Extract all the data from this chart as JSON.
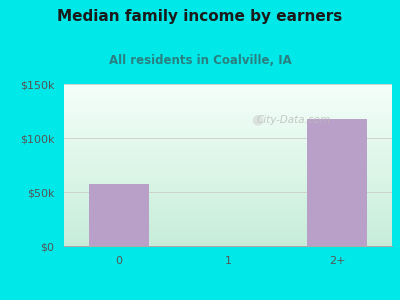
{
  "title": "Median family income by earners",
  "subtitle": "All residents in Coalville, IA",
  "categories": [
    "0",
    "1",
    "2+"
  ],
  "values": [
    57000,
    0,
    118000
  ],
  "bar_color": "#b8a0c8",
  "ylim": [
    0,
    150000
  ],
  "yticks": [
    0,
    50000,
    100000,
    150000
  ],
  "ytick_labels": [
    "$0",
    "$50k",
    "$100k",
    "$150k"
  ],
  "outer_bg": "#00e8e8",
  "title_color": "#1a1a1a",
  "subtitle_color": "#2a8080",
  "tick_color": "#555555",
  "watermark": "City-Data.com",
  "title_fontsize": 11,
  "subtitle_fontsize": 8.5,
  "tick_fontsize": 8,
  "grad_top": "#f5fffa",
  "grad_bottom": "#c8ecd8"
}
